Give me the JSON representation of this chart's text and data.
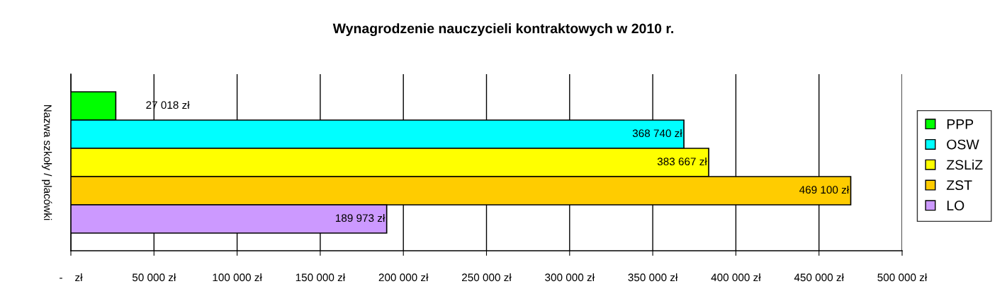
{
  "chart_data": {
    "type": "bar",
    "orientation": "horizontal",
    "title": "Wynagrodzenie nauczycieli kontraktowych w 2010 r.",
    "ylabel": "Nazwa szkoły / placówki",
    "categories": [
      null
    ],
    "series": [
      {
        "name": "PPP",
        "color": "#00ff00",
        "values": [
          27018
        ],
        "value_labels": [
          "27 018 zł"
        ]
      },
      {
        "name": "OSW",
        "color": "#00ffff",
        "values": [
          368740
        ],
        "value_labels": [
          "368 740 zł"
        ]
      },
      {
        "name": "ZSLiZ",
        "color": "#ffff00",
        "values": [
          383667
        ],
        "value_labels": [
          "383 667 zł"
        ]
      },
      {
        "name": "ZST",
        "color": "#ffcc00",
        "values": [
          469100
        ],
        "value_labels": [
          "469 100 zł"
        ]
      },
      {
        "name": "LO",
        "color": "#cc99ff",
        "values": [
          189973
        ],
        "value_labels": [
          "189 973 zł"
        ]
      }
    ],
    "xlim": [
      0,
      500000
    ],
    "xticks": [
      {
        "value": 0,
        "label": "-    zł"
      },
      {
        "value": 50000,
        "label": "50 000 zł"
      },
      {
        "value": 100000,
        "label": "100 000 zł"
      },
      {
        "value": 150000,
        "label": "150 000 zł"
      },
      {
        "value": 200000,
        "label": "200 000 zł"
      },
      {
        "value": 250000,
        "label": "250 000 zł"
      },
      {
        "value": 300000,
        "label": "300 000 zł"
      },
      {
        "value": 350000,
        "label": "350 000 zł"
      },
      {
        "value": 400000,
        "label": "400 000 zł"
      },
      {
        "value": 450000,
        "label": "450 000 zł"
      },
      {
        "value": 500000,
        "label": "500 000 zł"
      }
    ],
    "grid": "x",
    "legend": "right"
  }
}
